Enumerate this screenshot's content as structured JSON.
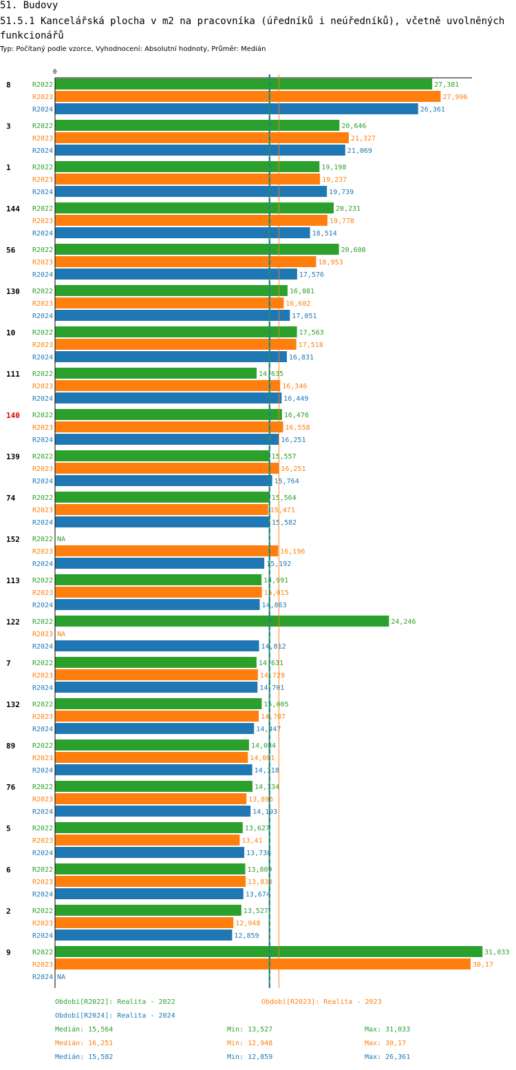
{
  "title": "51. Budovy",
  "subtitle": "51.5.1 Kancelářská plocha v m2 na pracovníka (úředníků i neúředníků), včetně uvolněných funkcionářů",
  "info": "Typ: Počítaný podle vzorce, Vyhodnocení: Absolutní hodnoty, Průměr: Medián",
  "colors": {
    "R2022": "#2ca02c",
    "R2023": "#ff7f0e",
    "R2024": "#1f77b4",
    "highlight": "#dd0000"
  },
  "chart_data": {
    "type": "bar",
    "orientation": "horizontal",
    "axis_zero_label": "0",
    "series": [
      {
        "name": "R2022",
        "color": "#2ca02c"
      },
      {
        "name": "R2023",
        "color": "#ff7f0e"
      },
      {
        "name": "R2024",
        "color": "#1f77b4"
      }
    ],
    "xlim": [
      0,
      31.8
    ],
    "highlighted_category": "140",
    "na_label": "NA",
    "median_lines": [
      {
        "series": "R2022",
        "value": 15.564,
        "style": "solid"
      },
      {
        "series": "R2024",
        "value": 15.582,
        "style": "dashed"
      },
      {
        "series": "R2023",
        "value": 16.251,
        "style": "solid"
      }
    ],
    "groups": [
      {
        "category": "8",
        "values": [
          27.381,
          27.996,
          26.361
        ],
        "labels": [
          "27,381",
          "27,996",
          "26,361"
        ]
      },
      {
        "category": "3",
        "values": [
          20.646,
          21.327,
          21.069
        ],
        "labels": [
          "20,646",
          "21,327",
          "21,069"
        ]
      },
      {
        "category": "1",
        "values": [
          19.198,
          19.237,
          19.739
        ],
        "labels": [
          "19,198",
          "19,237",
          "19,739"
        ]
      },
      {
        "category": "144",
        "values": [
          20.231,
          19.778,
          18.514
        ],
        "labels": [
          "20,231",
          "19,778",
          "18,514"
        ]
      },
      {
        "category": "56",
        "values": [
          20.608,
          18.953,
          17.576
        ],
        "labels": [
          "20,608",
          "18,953",
          "17,576"
        ]
      },
      {
        "category": "130",
        "values": [
          16.881,
          16.602,
          17.051
        ],
        "labels": [
          "16,881",
          "16,602",
          "17,051"
        ]
      },
      {
        "category": "10",
        "values": [
          17.563,
          17.518,
          16.831
        ],
        "labels": [
          "17,563",
          "17,518",
          "16,831"
        ]
      },
      {
        "category": "111",
        "values": [
          14.635,
          16.346,
          16.449
        ],
        "labels": [
          "14,635",
          "16,346",
          "16,449"
        ]
      },
      {
        "category": "140",
        "values": [
          16.476,
          16.558,
          16.251
        ],
        "labels": [
          "16,476",
          "16,558",
          "16,251"
        ]
      },
      {
        "category": "139",
        "values": [
          15.557,
          16.251,
          15.764
        ],
        "labels": [
          "15,557",
          "16,251",
          "15,764"
        ]
      },
      {
        "category": "74",
        "values": [
          15.564,
          15.471,
          15.582
        ],
        "labels": [
          "15,564",
          "15,471",
          "15,582"
        ]
      },
      {
        "category": "152",
        "values": [
          null,
          16.196,
          15.192
        ],
        "labels": [
          "NA",
          "16,196",
          "15,192"
        ]
      },
      {
        "category": "113",
        "values": [
          14.991,
          15.015,
          14.863
        ],
        "labels": [
          "14,991",
          "15,015",
          "14,863"
        ]
      },
      {
        "category": "122",
        "values": [
          24.246,
          null,
          14.812
        ],
        "labels": [
          "24,246",
          "NA",
          "14,812"
        ]
      },
      {
        "category": "7",
        "values": [
          14.631,
          14.729,
          14.701
        ],
        "labels": [
          "14,631",
          "14,729",
          "14,701"
        ]
      },
      {
        "category": "132",
        "values": [
          15.005,
          14.787,
          14.447
        ],
        "labels": [
          "15,005",
          "14,787",
          "14,447"
        ]
      },
      {
        "category": "89",
        "values": [
          14.084,
          14.001,
          14.318
        ],
        "labels": [
          "14,084",
          "14,001",
          "14,318"
        ]
      },
      {
        "category": "76",
        "values": [
          14.334,
          13.895,
          14.193
        ],
        "labels": [
          "14,334",
          "13,895",
          "14,193"
        ]
      },
      {
        "category": "5",
        "values": [
          13.627,
          13.41,
          13.738
        ],
        "labels": [
          "13,627",
          "13,41",
          "13,738"
        ]
      },
      {
        "category": "6",
        "values": [
          13.809,
          13.838,
          13.674
        ],
        "labels": [
          "13,809",
          "13,838",
          "13,674"
        ]
      },
      {
        "category": "2",
        "values": [
          13.527,
          12.948,
          12.859
        ],
        "labels": [
          "13,527",
          "12,948",
          "12,859"
        ]
      },
      {
        "category": "9",
        "values": [
          31.033,
          30.17,
          null
        ],
        "labels": [
          "31,033",
          "30,17",
          "NA"
        ]
      }
    ]
  },
  "legend": {
    "periods": [
      {
        "text": "Období[R2022]: Realita - 2022",
        "series": "R2022"
      },
      {
        "text": "Období[R2023]: Realita - 2023",
        "series": "R2023"
      },
      {
        "text": "Období[R2024]: Realita - 2024",
        "series": "R2024"
      }
    ],
    "stats": [
      {
        "series": "R2022",
        "median": "Medián: 15,564",
        "min": "Min: 13,527",
        "max": "Max: 31,033"
      },
      {
        "series": "R2023",
        "median": "Medián: 16,251",
        "min": "Min: 12,948",
        "max": "Max: 30,17"
      },
      {
        "series": "R2024",
        "median": "Medián: 15,582",
        "min": "Min: 12,859",
        "max": "Max: 26,361"
      }
    ]
  }
}
